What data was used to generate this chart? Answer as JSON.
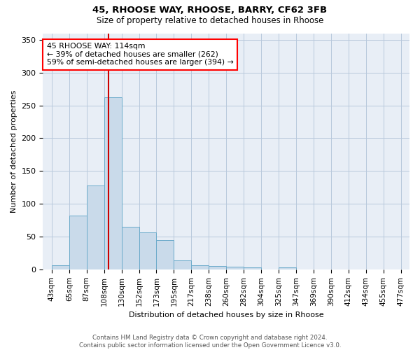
{
  "title1": "45, RHOOSE WAY, RHOOSE, BARRY, CF62 3FB",
  "title2": "Size of property relative to detached houses in Rhoose",
  "xlabel": "Distribution of detached houses by size in Rhoose",
  "ylabel": "Number of detached properties",
  "bar_color": "#c9daea",
  "bar_edge_color": "#6aaaca",
  "background_color": "#e8eef6",
  "categories": [
    "43sqm",
    "65sqm",
    "87sqm",
    "108sqm",
    "130sqm",
    "152sqm",
    "173sqm",
    "195sqm",
    "217sqm",
    "238sqm",
    "260sqm",
    "282sqm",
    "304sqm",
    "325sqm",
    "347sqm",
    "369sqm",
    "390sqm",
    "412sqm",
    "434sqm",
    "455sqm",
    "477sqm"
  ],
  "all_heights": [
    6,
    82,
    128,
    262,
    65,
    56,
    45,
    14,
    6,
    5,
    4,
    3,
    0,
    3,
    0,
    0,
    0,
    0,
    0,
    0
  ],
  "ylim": [
    0,
    360
  ],
  "yticks": [
    0,
    50,
    100,
    150,
    200,
    250,
    300,
    350
  ],
  "annotation_text": "45 RHOOSE WAY: 114sqm\n← 39% of detached houses are smaller (262)\n59% of semi-detached houses are larger (394) →",
  "footer": "Contains HM Land Registry data © Crown copyright and database right 2024.\nContains public sector information licensed under the Open Government Licence v3.0.",
  "grid_color": "#b8c8dc",
  "vline_color": "#cc0000",
  "property_sqm": 114,
  "bin_edges_sqm": [
    43,
    65,
    87,
    108,
    130,
    152,
    173,
    195,
    217,
    238,
    260,
    282,
    304,
    325,
    347,
    369,
    390,
    412,
    434,
    455,
    477
  ]
}
